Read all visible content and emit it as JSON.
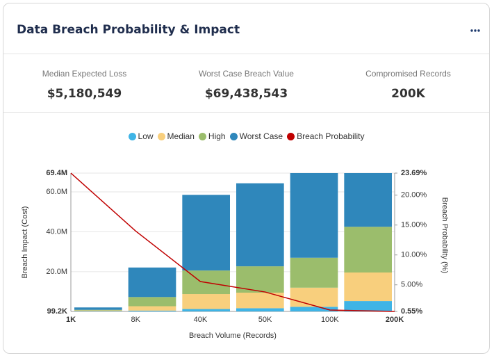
{
  "header": {
    "title": "Data Breach Probability & Impact"
  },
  "kpis": [
    {
      "label": "Median Expected Loss",
      "value": "$5,180,549"
    },
    {
      "label": "Worst Case Breach Value",
      "value": "$69,438,543"
    },
    {
      "label": "Compromised Records",
      "value": "200K"
    }
  ],
  "chart_data": {
    "type": "bar",
    "stacked": true,
    "categories": [
      "1K",
      "8K",
      "40K",
      "50K",
      "100K",
      "200K"
    ],
    "xlabel": "Breach Volume (Records)",
    "ylabel": "Breach Impact (Cost)",
    "y2label": "Breach Probability (%)",
    "legend": "top",
    "grid": true,
    "series": [
      {
        "name": "Low",
        "color": "#3fb4e6",
        "values": [
          300000,
          500000,
          1300000,
          1700000,
          2400000,
          5300000
        ]
      },
      {
        "name": "Median",
        "color": "#f8cf7d",
        "values": [
          300000,
          2200000,
          7500000,
          7800000,
          9600000,
          14300000
        ]
      },
      {
        "name": "High",
        "color": "#9bbd6c",
        "values": [
          300000,
          4600000,
          11800000,
          13200000,
          15000000,
          22900000
        ]
      },
      {
        "name": "Worst Case",
        "color": "#2f87bb",
        "values": [
          1200000,
          14800000,
          37900000,
          41600000,
          42400000,
          26900000
        ]
      },
      {
        "name": "Breach Probability",
        "color": "#c00000",
        "type": "line",
        "axis": "y2",
        "values": [
          23.69,
          14.0,
          5.55,
          3.8,
          0.78,
          0.55
        ]
      }
    ],
    "ylim": [
      99200,
      69400000
    ],
    "yticks": [
      {
        "value": 99200,
        "label": "99.2K"
      },
      {
        "value": 20000000,
        "label": "20.0M"
      },
      {
        "value": 40000000,
        "label": "40.0M"
      },
      {
        "value": 60000000,
        "label": "60.0M"
      },
      {
        "value": 69400000,
        "label": "69.4M"
      }
    ],
    "y2lim": [
      0.55,
      23.69
    ],
    "y2ticks": [
      {
        "value": 0.55,
        "label": "0.55%"
      },
      {
        "value": 5,
        "label": "5.00%"
      },
      {
        "value": 10,
        "label": "10.00%"
      },
      {
        "value": 15,
        "label": "15.00%"
      },
      {
        "value": 20,
        "label": "20.00%"
      },
      {
        "value": 23.69,
        "label": "23.69%"
      }
    ]
  }
}
